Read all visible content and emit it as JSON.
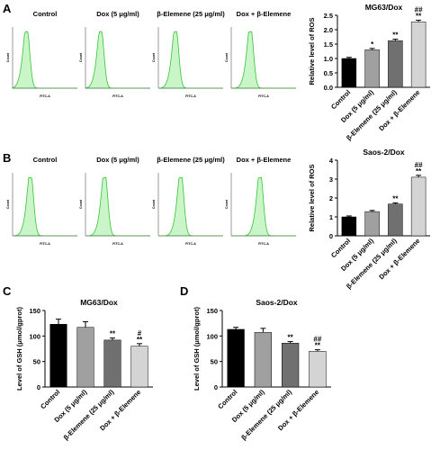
{
  "panel_labels": [
    "A",
    "B",
    "C",
    "D"
  ],
  "flow": {
    "titles": [
      "Control",
      "Dox (5 μg/ml)",
      "β-Elemene (25 μg/ml)",
      "Dox + β-Elemene"
    ],
    "ylabel": "Count",
    "xlabel": "FITC-A"
  },
  "chart_data": [
    {
      "type": "bar",
      "title": "MG63/Dox",
      "ylabel": "Relative level of ROS",
      "categories": [
        "Control",
        "Dox (5 μg/ml)",
        "β-Elemene (25 μg/ml)",
        "Dox + β-Elemene"
      ],
      "values": [
        1.0,
        1.3,
        1.62,
        2.27
      ],
      "errors": [
        0.04,
        0.05,
        0.05,
        0.06
      ],
      "colors": [
        "#000000",
        "#a0a0a0",
        "#707070",
        "#d4d4d4"
      ],
      "annotations": [
        [],
        [
          "*"
        ],
        [
          "**"
        ],
        [
          "##",
          "**"
        ]
      ],
      "ylim": [
        0,
        2.5
      ],
      "yticks": [
        {
          "value": 0,
          "label": "0.0"
        },
        0.5,
        {
          "value": 1,
          "label": "1.0"
        },
        1.5,
        {
          "value": 2,
          "label": "2.0"
        },
        2.5
      ]
    },
    {
      "type": "bar",
      "title": "Saos-2/Dox",
      "ylabel": "Relative level of ROS",
      "categories": [
        "Control",
        "Dox (5 μg/ml)",
        "β-Elemene (25 μg/ml)",
        "Dox + β-Elemene"
      ],
      "values": [
        1.0,
        1.28,
        1.68,
        3.1
      ],
      "errors": [
        0.05,
        0.06,
        0.06,
        0.1
      ],
      "colors": [
        "#000000",
        "#a0a0a0",
        "#707070",
        "#d4d4d4"
      ],
      "annotations": [
        [],
        [],
        [
          "**"
        ],
        [
          "##",
          "**"
        ]
      ],
      "ylim": [
        0,
        4
      ],
      "yticks": [
        0,
        1,
        2,
        3,
        4
      ]
    },
    {
      "type": "bar",
      "title": "MG63/Dox",
      "ylabel": "Level of GSH (μmol/gprot)",
      "categories": [
        "Control",
        "Dox (5 μg/ml)",
        "β-Elemene (25 μg/ml)",
        "Dox + β-Elemene"
      ],
      "values": [
        123,
        117,
        92,
        80
      ],
      "errors": [
        10,
        11,
        4,
        5
      ],
      "colors": [
        "#000000",
        "#a0a0a0",
        "#707070",
        "#d4d4d4"
      ],
      "annotations": [
        [],
        [],
        [
          "**"
        ],
        [
          "#",
          "**"
        ]
      ],
      "ylim": [
        0,
        150
      ],
      "yticks": [
        0,
        50,
        100,
        150
      ]
    },
    {
      "type": "bar",
      "title": "Saos-2/Dox",
      "ylabel": "Level of GSH (μmol/gprot)",
      "categories": [
        "Control",
        "Dox (5 μg/ml)",
        "β-Elemene (25 μg/ml)",
        "Dox + β-Elemene"
      ],
      "values": [
        113,
        107,
        86,
        70
      ],
      "errors": [
        4,
        8,
        3,
        3
      ],
      "colors": [
        "#000000",
        "#a0a0a0",
        "#707070",
        "#d4d4d4"
      ],
      "annotations": [
        [],
        [],
        [
          "**"
        ],
        [
          "##",
          "**"
        ]
      ],
      "ylim": [
        0,
        150
      ],
      "yticks": [
        0,
        50,
        100,
        150
      ]
    }
  ]
}
